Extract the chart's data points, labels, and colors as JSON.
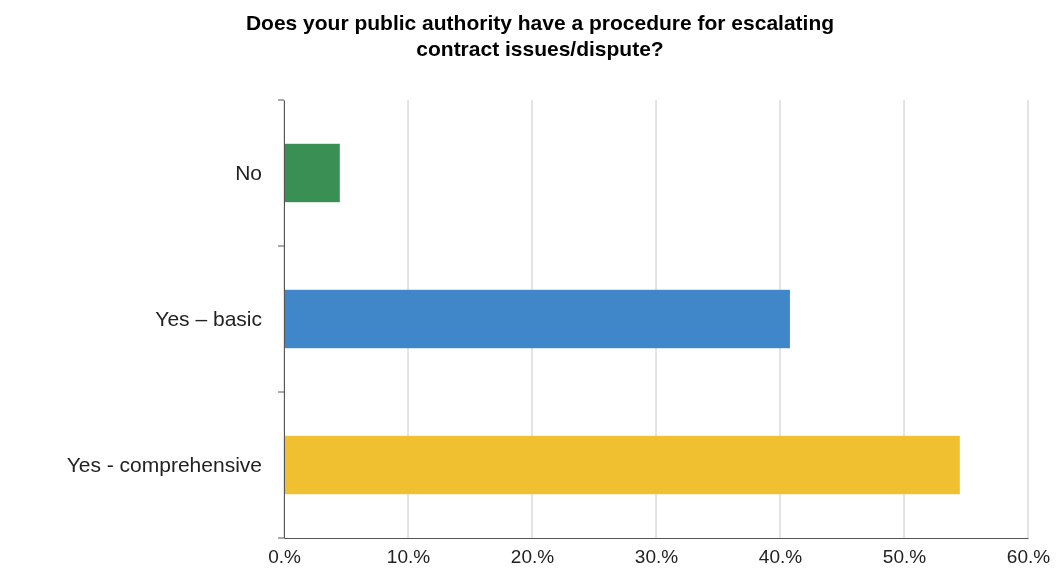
{
  "chart_data": {
    "type": "bar",
    "orientation": "horizontal",
    "title": "Does your public authority have a procedure for escalating contract issues/dispute?",
    "categories": [
      "No",
      "Yes – basic",
      "Yes - comprehensive"
    ],
    "values": [
      4.5,
      40.8,
      54.5
    ],
    "colors": [
      "#3a8f55",
      "#3f87c8",
      "#f0c030"
    ],
    "xlim": [
      0,
      60
    ],
    "xticks": [
      {
        "value": 0,
        "label": "0.%"
      },
      {
        "value": 10,
        "label": "10.%"
      },
      {
        "value": 20,
        "label": "20.%"
      },
      {
        "value": 30,
        "label": "30.%"
      },
      {
        "value": 40,
        "label": "40.%"
      },
      {
        "value": 50,
        "label": "50.%"
      },
      {
        "value": 60,
        "label": "60.%"
      }
    ],
    "grid": "x"
  }
}
